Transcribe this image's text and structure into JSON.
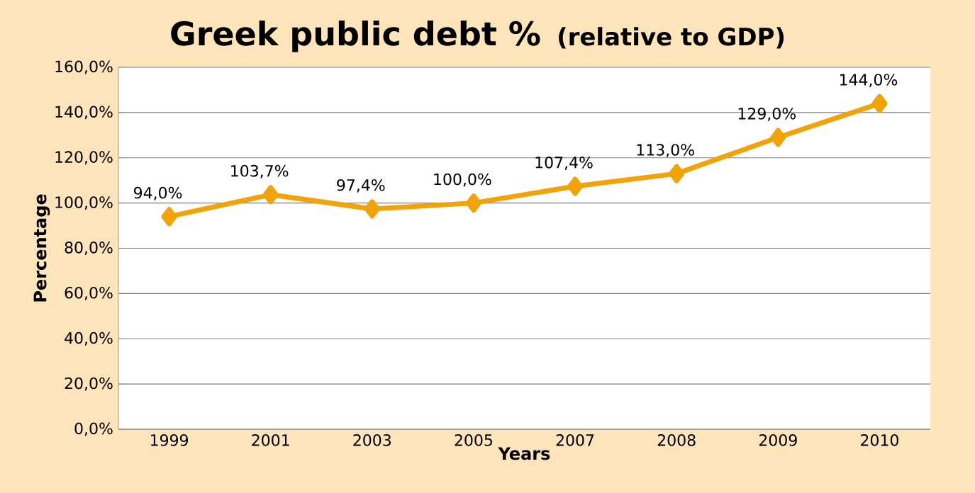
{
  "chart_data": {
    "type": "line",
    "title": "Greek public debt %",
    "subtitle": "(relative to GDP)",
    "xlabel": "Years",
    "ylabel": "Percentage",
    "categories": [
      "1999",
      "2001",
      "2003",
      "2005",
      "2007",
      "2008",
      "2009",
      "2010"
    ],
    "values": [
      94.0,
      103.7,
      97.4,
      100.0,
      107.4,
      113.0,
      129.0,
      144.0
    ],
    "value_labels": [
      "94,0%",
      "103,7%",
      "97,4%",
      "100,0%",
      "107,4%",
      "113,0%",
      "129,0%",
      "144,0%"
    ],
    "color": "#f0a30a",
    "marker": "diamond",
    "line_style": "solid",
    "ylim": [
      0,
      160
    ],
    "yticks": [
      {
        "value": 0,
        "label": "0,0%"
      },
      {
        "value": 20,
        "label": "20,0%"
      },
      {
        "value": 40,
        "label": "40,0%"
      },
      {
        "value": 60,
        "label": "60,0%"
      },
      {
        "value": 80,
        "label": "80,0%"
      },
      {
        "value": 100,
        "label": "100,0%"
      },
      {
        "value": 120,
        "label": "120,0%"
      },
      {
        "value": 140,
        "label": "140,0%"
      },
      {
        "value": 160,
        "label": "160,0%"
      }
    ],
    "grid": "y"
  }
}
